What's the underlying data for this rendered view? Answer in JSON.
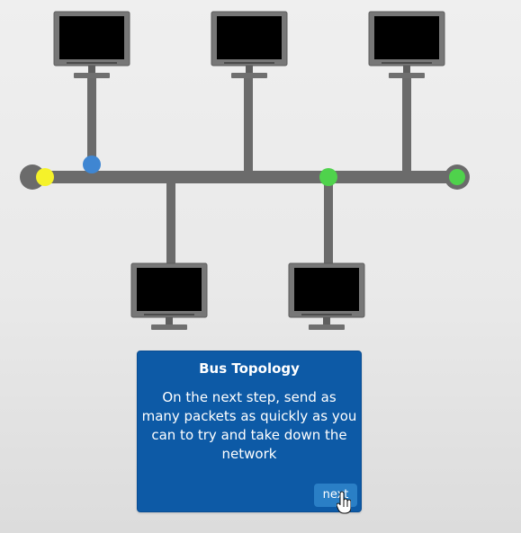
{
  "panel": {
    "title": "Bus Topology",
    "body": "On the next step, send as many packets as quickly as you can to try and take down the network",
    "next_label": "next"
  },
  "colors": {
    "bus": "#6b6b6b",
    "panel_bg": "#0d5aa6",
    "button_bg": "#2a7fc6",
    "packet_yellow": "#f5f22a",
    "packet_blue": "#3f86d2",
    "packet_green": "#4fd24c",
    "terminator_green": "#4fd24c"
  }
}
